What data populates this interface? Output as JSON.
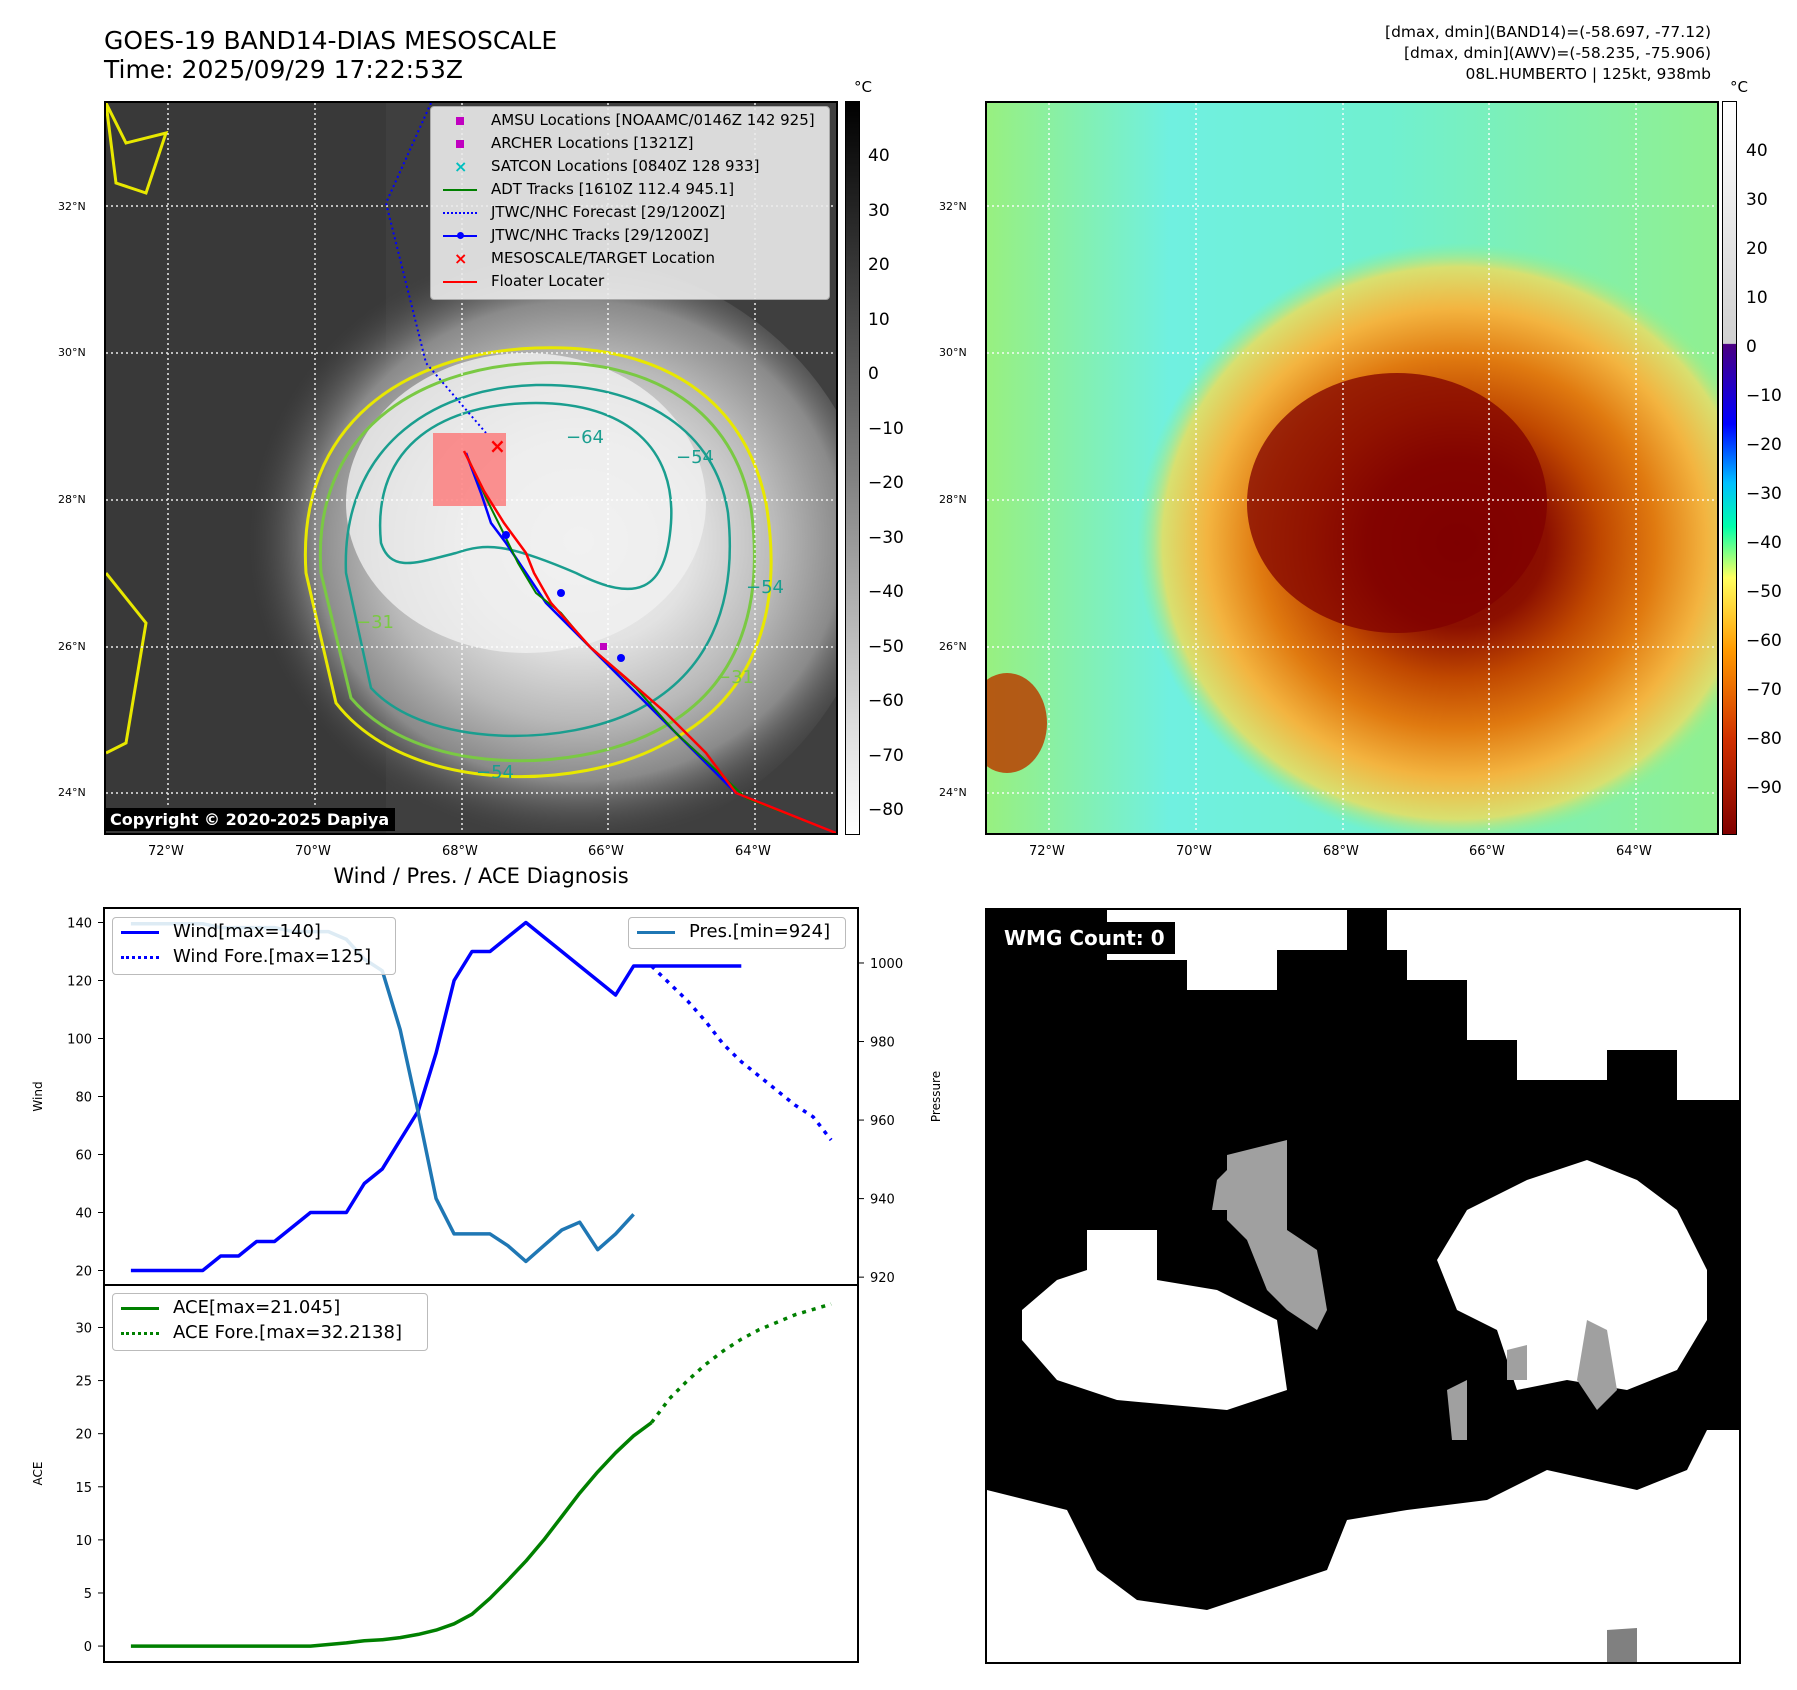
{
  "header": {
    "title_line1": "GOES-19 BAND14-DIAS MESOSCALE",
    "title_line2": "Time: 2025/09/29 17:22:53Z",
    "stats_line1": "[dmax, dmin](BAND14)=(-58.697, -77.12)",
    "stats_line2": "[dmax, dmin](AWV)=(-58.235, -75.906)",
    "stats_line3": "08L.HUMBERTO | 125kt, 938mb"
  },
  "map_axes": {
    "lat_labels": [
      "32°N",
      "30°N",
      "28°N",
      "26°N",
      "24°N"
    ],
    "lon_labels": [
      "72°W",
      "70°W",
      "68°W",
      "66°W",
      "64°W"
    ]
  },
  "left_map": {
    "colorbar_unit": "°C",
    "colorbar_ticks": [
      "40",
      "30",
      "20",
      "10",
      "0",
      "−10",
      "−20",
      "−30",
      "−40",
      "−50",
      "−60",
      "−70",
      "−80"
    ],
    "contour_labels": [
      "−64",
      "−54",
      "−54",
      "−31",
      "−31",
      "−54"
    ],
    "copyright": "Copyright © 2020-2025 Dapiya",
    "legend": [
      {
        "label": "AMSU Locations [NOAAMC/0146Z 142 925]",
        "marker": "square",
        "color": "#c000c0"
      },
      {
        "label": "ARCHER Locations [1321Z]",
        "marker": "square",
        "color": "#c000c0"
      },
      {
        "label": "SATCON Locations [0840Z 128 933]",
        "marker": "x",
        "color": "#00bfbf"
      },
      {
        "label": "ADT Tracks [1610Z 112.4 945.1]",
        "marker": "line",
        "color": "#008000"
      },
      {
        "label": "JTWC/NHC Forecast [29/1200Z]",
        "marker": "dotted",
        "color": "#0000ff"
      },
      {
        "label": "JTWC/NHC Tracks [29/1200Z]",
        "marker": "line-dot",
        "color": "#0000ff"
      },
      {
        "label": "MESOSCALE/TARGET Location",
        "marker": "x",
        "color": "#ff0000"
      },
      {
        "label": "Floater Locater",
        "marker": "line",
        "color": "#ff0000"
      }
    ]
  },
  "right_map": {
    "colorbar_unit": "°C",
    "colorbar_ticks": [
      "40",
      "30",
      "20",
      "10",
      "0",
      "−10",
      "−20",
      "−30",
      "−40",
      "−50",
      "−60",
      "−70",
      "−80",
      "−90"
    ]
  },
  "wmg_panel": {
    "label": "WMG Count: 0"
  },
  "chart_data": [
    {
      "type": "line",
      "title": "Wind / Pres. / ACE Diagnosis",
      "ylabel": "Wind",
      "y2label": "Pressure",
      "ylim": [
        15,
        145
      ],
      "y2lim": [
        918,
        1014
      ],
      "yticks": [
        20,
        40,
        60,
        80,
        100,
        120,
        140
      ],
      "y2ticks": [
        920,
        940,
        960,
        980,
        1000
      ],
      "series": [
        {
          "name": "Wind[max=140]",
          "color": "#0000ff",
          "style": "solid",
          "x": [
            0,
            1,
            2,
            3,
            4,
            5,
            6,
            7,
            8,
            9,
            10,
            11,
            12,
            13,
            14,
            15,
            16,
            17,
            18,
            19,
            20,
            21,
            22,
            23,
            24,
            25,
            26,
            27,
            28,
            29,
            30,
            31,
            32,
            33,
            34
          ],
          "values": [
            20,
            20,
            20,
            20,
            20,
            25,
            25,
            30,
            30,
            35,
            40,
            40,
            40,
            50,
            55,
            65,
            75,
            95,
            120,
            130,
            130,
            135,
            140,
            135,
            130,
            125,
            120,
            115,
            125,
            125,
            125,
            125,
            125,
            125,
            125
          ]
        },
        {
          "name": "Wind Fore.[max=125]",
          "color": "#0000ff",
          "style": "dotted",
          "x": [
            29,
            30,
            31,
            32,
            33,
            34,
            35,
            36,
            37,
            38,
            39
          ],
          "values": [
            125,
            119,
            113,
            106,
            98,
            92,
            87,
            82,
            77,
            73,
            65
          ]
        },
        {
          "name": "Pres.[min=924]",
          "color": "#1f77b4",
          "style": "solid",
          "axis": "right",
          "x": [
            0,
            1,
            2,
            3,
            4,
            5,
            6,
            7,
            8,
            9,
            10,
            11,
            12,
            13,
            14,
            15,
            16,
            17,
            18,
            19,
            20,
            21,
            22,
            23,
            24,
            25,
            26,
            27,
            28
          ],
          "values": [
            1010,
            1010,
            1010,
            1010,
            1010,
            1009,
            1009,
            1009,
            1009,
            1008,
            1008,
            1008,
            1006,
            1001,
            998,
            983,
            962,
            940,
            931,
            931,
            931,
            928,
            924,
            928,
            932,
            934,
            927,
            931,
            936
          ]
        }
      ],
      "legend_left": [
        "Wind[max=140]",
        "Wind Fore.[max=125]"
      ],
      "legend_right": [
        "Pres.[min=924]"
      ]
    },
    {
      "type": "line",
      "ylabel": "ACE",
      "ylim": [
        -1.5,
        34
      ],
      "yticks": [
        0,
        5,
        10,
        15,
        20,
        25,
        30
      ],
      "series": [
        {
          "name": "ACE[max=21.045]",
          "color": "#008000",
          "style": "solid",
          "x": [
            0,
            2,
            4,
            6,
            8,
            10,
            12,
            13,
            14,
            15,
            16,
            17,
            18,
            19,
            20,
            21,
            22,
            23,
            24,
            25,
            26,
            27,
            28,
            29
          ],
          "values": [
            0,
            0,
            0,
            0,
            0,
            0,
            0.3,
            0.5,
            0.6,
            0.8,
            1.1,
            1.5,
            2.1,
            3.0,
            4.5,
            6.2,
            8.0,
            10.0,
            12.2,
            14.4,
            16.4,
            18.2,
            19.8,
            21.045
          ]
        },
        {
          "name": "ACE Fore.[max=32.2138]",
          "color": "#008000",
          "style": "dotted",
          "x": [
            29,
            30,
            31,
            32,
            33,
            34,
            35,
            36,
            37,
            38,
            39
          ],
          "values": [
            21.045,
            23.3,
            25.0,
            26.5,
            27.8,
            28.9,
            29.8,
            30.5,
            31.2,
            31.7,
            32.2138
          ]
        }
      ],
      "legend": [
        "ACE[max=21.045]",
        "ACE Fore.[max=32.2138]"
      ]
    }
  ]
}
